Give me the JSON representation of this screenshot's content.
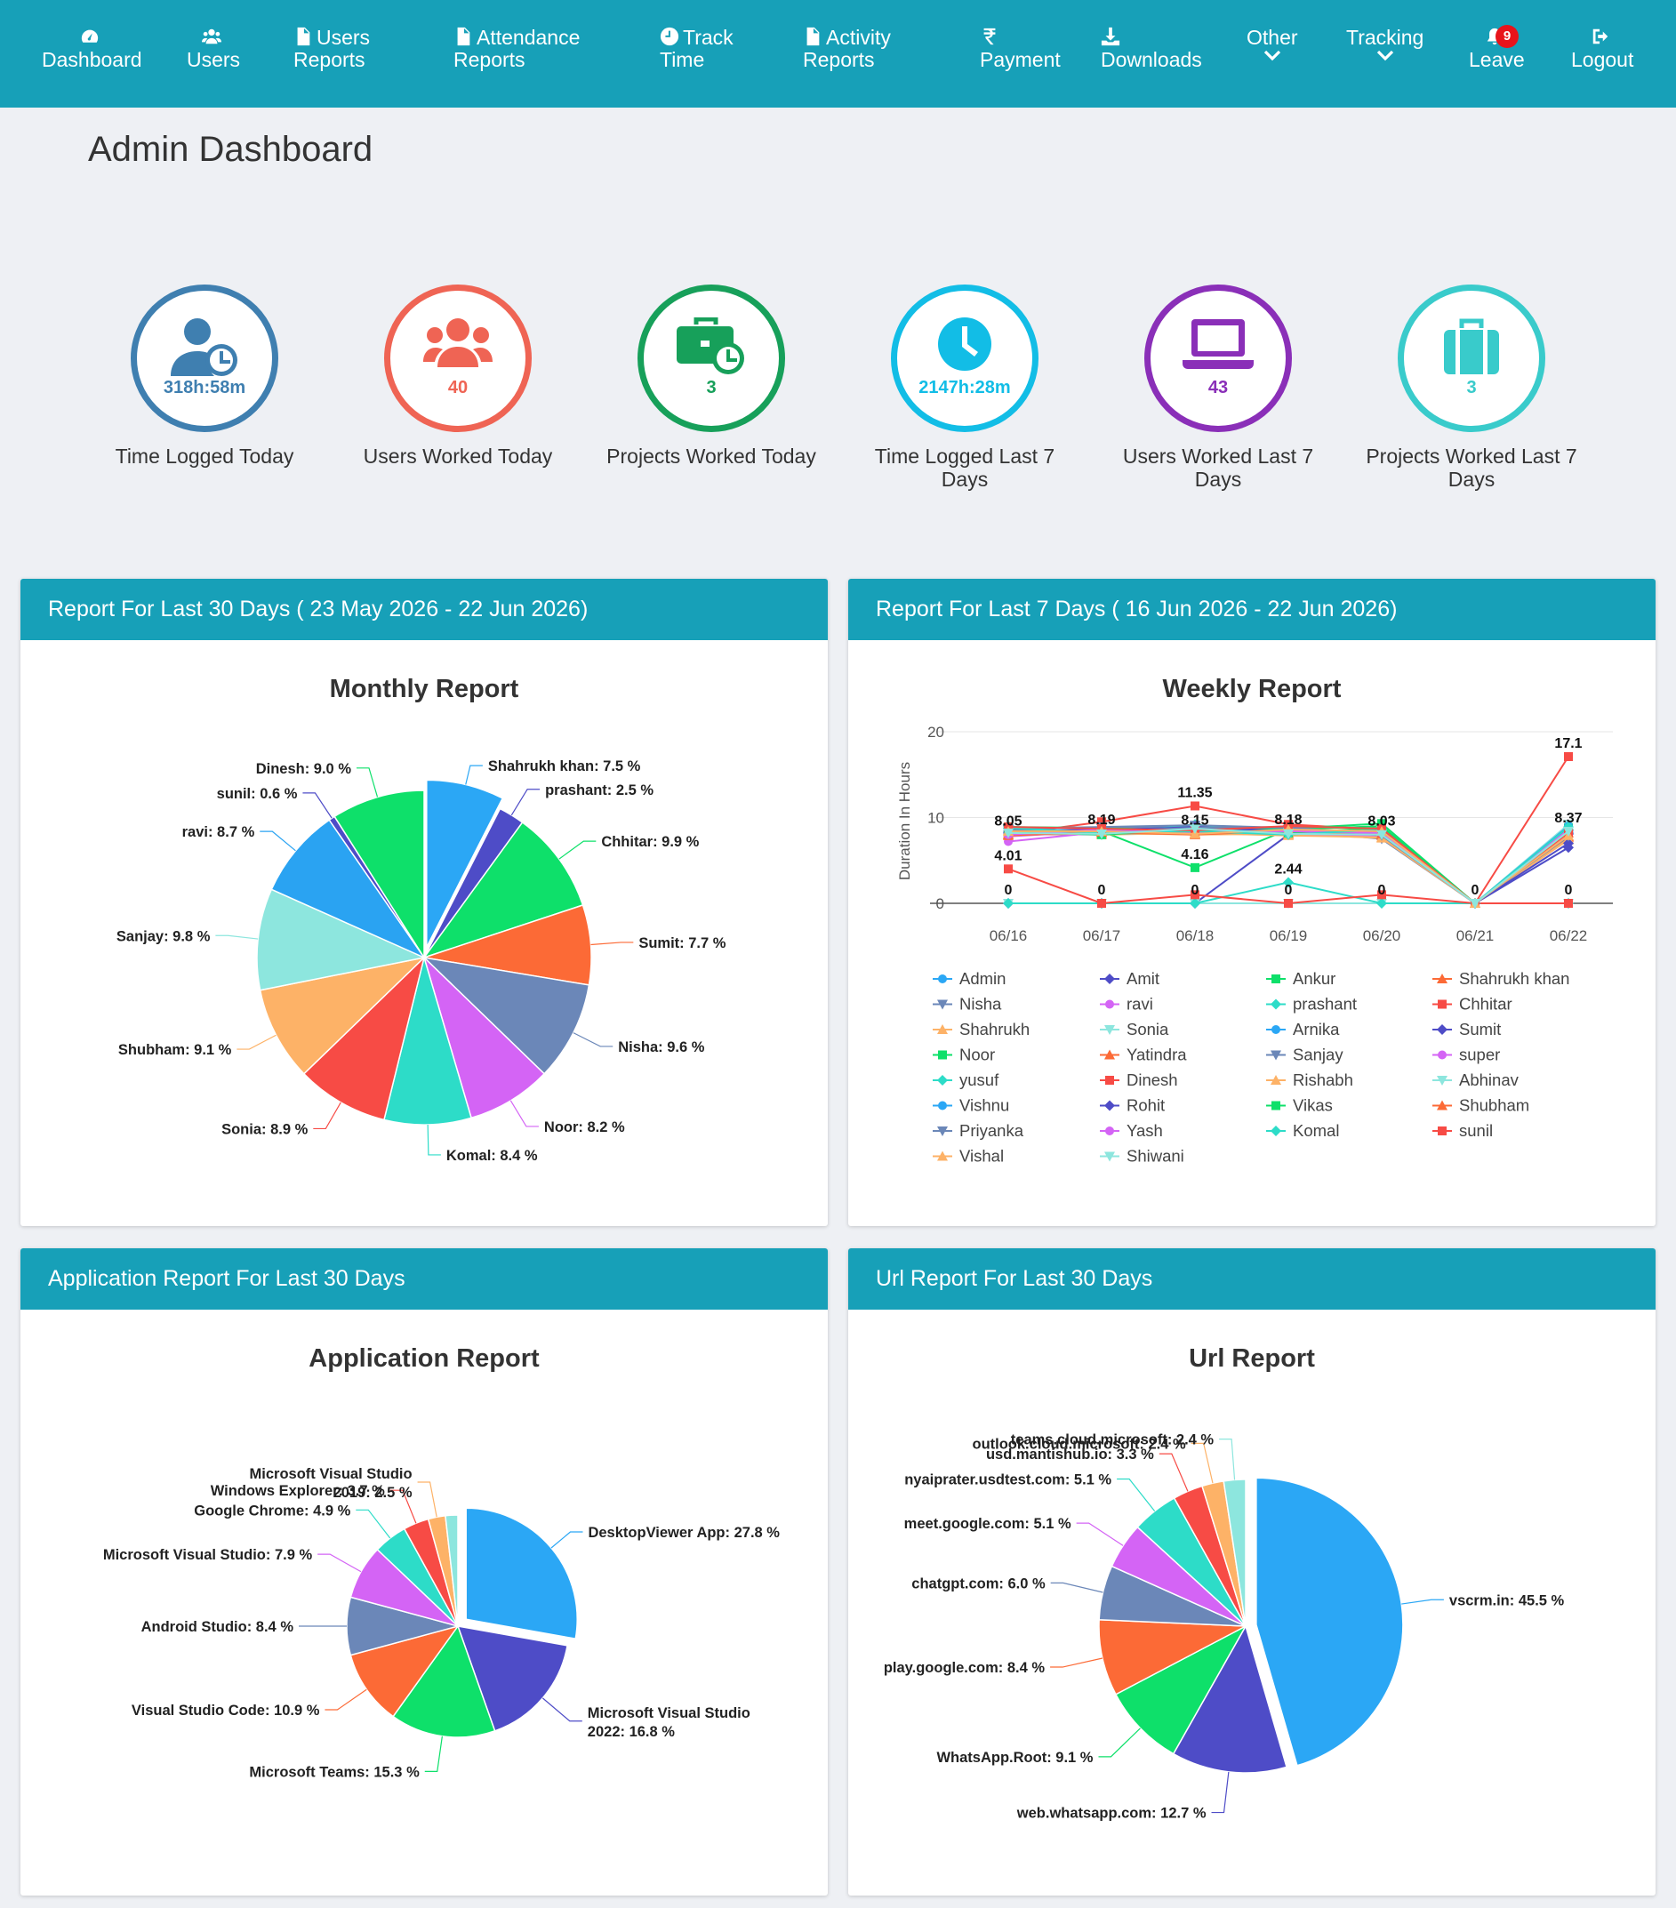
{
  "nav": {
    "items": [
      {
        "l1": "",
        "l2": "Dashboard",
        "icon": "dashboard-icon"
      },
      {
        "l1": "",
        "l2": "Users",
        "icon": "users-icon"
      },
      {
        "l1": "Users",
        "l2": "Reports",
        "icon": "file-icon"
      },
      {
        "l1": "Attendance",
        "l2": "Reports",
        "icon": "file-icon"
      },
      {
        "l1": "Track",
        "l2": "Time",
        "icon": "clock-icon"
      },
      {
        "l1": "Activity",
        "l2": "Reports",
        "icon": "file-icon"
      },
      {
        "l1": "",
        "l2": "Payment",
        "icon": "rupee-icon"
      },
      {
        "l1": "",
        "l2": "Downloads",
        "icon": "download-icon"
      },
      {
        "l1": "Other",
        "icon": "chevron-down-icon"
      },
      {
        "l1": "Tracking",
        "icon": "chevron-down-icon"
      },
      {
        "l1": "",
        "l2": "Leave",
        "icon": "bell-icon",
        "badge": "9"
      },
      {
        "l1": "",
        "l2": "Logout",
        "icon": "logout-icon"
      }
    ]
  },
  "page_title": "Admin Dashboard",
  "stats": [
    {
      "value": "318h:58m",
      "label": "Time Logged Today",
      "color": "#3f7fb0",
      "icon": "user-clock-icon"
    },
    {
      "value": "40",
      "label": "Users Worked Today",
      "color": "#ef6454",
      "icon": "users-icon"
    },
    {
      "value": "3",
      "label": "Projects Worked Today",
      "color": "#17a05a",
      "icon": "briefcase-clock-icon"
    },
    {
      "value": "2147h:28m",
      "label": "Time Logged Last 7 Days",
      "color": "#12bde6",
      "icon": "clock-icon"
    },
    {
      "value": "43",
      "label": "Users Worked Last 7 Days",
      "color": "#8a2fb8",
      "icon": "laptop-icon"
    },
    {
      "value": "3",
      "label": "Projects Worked Last 7 Days",
      "color": "#39cbcb",
      "icon": "luggage-icon"
    }
  ],
  "panels": {
    "monthly_head": "Report For Last 30 Days ( 23 May 2026 - 22 Jun 2026)",
    "weekly_head": "Report For Last 7 Days ( 16 Jun 2026 - 22 Jun 2026)",
    "app_head": "Application Report For Last 30 Days",
    "url_head": "Url Report For Last 30 Days"
  },
  "chart_data": [
    {
      "type": "pie",
      "title": "Monthly Report",
      "slices": [
        {
          "label": "Shahrukh khan: 7.5 %",
          "value": 7.5,
          "color": "#2ba7f5",
          "exploded": true
        },
        {
          "label": "prashant: 2.5 %",
          "value": 2.5,
          "color": "#4e4cc7"
        },
        {
          "label": "Chhitar: 9.9 %",
          "value": 9.9,
          "color": "#0ee06a"
        },
        {
          "label": "Sumit: 7.7 %",
          "value": 7.7,
          "color": "#fc6a36"
        },
        {
          "label": "Nisha: 9.6 %",
          "value": 9.6,
          "color": "#6b87b8"
        },
        {
          "label": "Noor: 8.2 %",
          "value": 8.2,
          "color": "#d464f5"
        },
        {
          "label": "Komal: 8.4 %",
          "value": 8.4,
          "color": "#2ddcc8"
        },
        {
          "label": "Sonia: 8.9 %",
          "value": 8.9,
          "color": "#f74b45"
        },
        {
          "label": "Shubham: 9.1 %",
          "value": 9.1,
          "color": "#fdb267"
        },
        {
          "label": "Sanjay: 9.8 %",
          "value": 9.8,
          "color": "#8de6de"
        },
        {
          "label": "ravi: 8.7 %",
          "value": 8.7,
          "color": "#2aa3f2"
        },
        {
          "label": "sunil: 0.6 %",
          "value": 0.6,
          "color": "#4e4cc7"
        },
        {
          "label": "Dinesh: 9.0 %",
          "value": 9.0,
          "color": "#0ee06a"
        }
      ]
    },
    {
      "type": "line",
      "title": "Weekly Report",
      "ylabel": "Duration In Hours",
      "ylim": [
        0,
        20
      ],
      "yticks": [
        "0",
        "10",
        "20"
      ],
      "categories": [
        "06/16",
        "06/17",
        "06/18",
        "06/19",
        "06/20",
        "06/21",
        "06/22"
      ],
      "value_labels": [
        {
          "x": 0,
          "y": 8.05,
          "t": "8.05"
        },
        {
          "x": 0,
          "y": 4.01,
          "t": "4.01"
        },
        {
          "x": 0,
          "y": 0,
          "t": "0"
        },
        {
          "x": 1,
          "y": 8.19,
          "t": "8.19"
        },
        {
          "x": 1,
          "y": 0,
          "t": "0"
        },
        {
          "x": 2,
          "y": 11.35,
          "t": "11.35"
        },
        {
          "x": 2,
          "y": 8.15,
          "t": "8.15"
        },
        {
          "x": 2,
          "y": 4.16,
          "t": "4.16"
        },
        {
          "x": 2,
          "y": 0,
          "t": "0"
        },
        {
          "x": 3,
          "y": 8.18,
          "t": "8.18"
        },
        {
          "x": 3,
          "y": 2.44,
          "t": "2.44"
        },
        {
          "x": 3,
          "y": 0,
          "t": "0"
        },
        {
          "x": 4,
          "y": 8.03,
          "t": "8.03"
        },
        {
          "x": 4,
          "y": 0,
          "t": "0"
        },
        {
          "x": 5,
          "y": 0,
          "t": "0"
        },
        {
          "x": 6,
          "y": 17.1,
          "t": "17.1"
        },
        {
          "x": 6,
          "y": 8.37,
          "t": "8.37"
        },
        {
          "x": 6,
          "y": 0,
          "t": "0"
        }
      ],
      "series": [
        {
          "name": "Admin",
          "color": "#2ba7f5",
          "marker": "circle",
          "values": [
            8.1,
            8.0,
            8.3,
            8.2,
            8.1,
            0,
            8.5
          ]
        },
        {
          "name": "Amit",
          "color": "#4e4cc7",
          "marker": "diamond",
          "values": [
            0,
            0,
            0,
            8.0,
            8.0,
            0,
            6.5
          ]
        },
        {
          "name": "Ankur",
          "color": "#0ee06a",
          "marker": "square",
          "values": [
            8.2,
            8.4,
            4.16,
            8.6,
            9.0,
            0,
            8.2
          ]
        },
        {
          "name": "Shahrukh khan",
          "color": "#fc6a36",
          "marker": "triangle",
          "values": [
            8.0,
            8.1,
            8.2,
            8.0,
            7.9,
            0,
            7.8
          ]
        },
        {
          "name": "Nisha",
          "color": "#6b87b8",
          "marker": "triangle-down",
          "values": [
            8.3,
            8.7,
            9.0,
            8.6,
            7.5,
            0,
            7.6
          ]
        },
        {
          "name": "ravi",
          "color": "#d464f5",
          "marker": "circle",
          "values": [
            7.2,
            8.3,
            8.5,
            8.3,
            8.0,
            0,
            7.9
          ]
        },
        {
          "name": "prashant",
          "color": "#2ddcc8",
          "marker": "diamond",
          "values": [
            9.0,
            8.0,
            9.2,
            8.1,
            8.2,
            0,
            8.6
          ]
        },
        {
          "name": "Chhitar",
          "color": "#f74b45",
          "marker": "square",
          "values": [
            8.05,
            9.5,
            11.35,
            9.2,
            8.6,
            0,
            17.1
          ]
        },
        {
          "name": "Shahrukh",
          "color": "#fdb267",
          "marker": "triangle",
          "values": [
            8.5,
            8.2,
            8.0,
            8.1,
            7.6,
            0,
            7.4
          ]
        },
        {
          "name": "Sonia",
          "color": "#8de6de",
          "marker": "triangle-down",
          "values": [
            0,
            0,
            0,
            0,
            0,
            0,
            0
          ]
        },
        {
          "name": "Arnika",
          "color": "#2ba7f5",
          "marker": "circle",
          "values": [
            8.6,
            8.5,
            8.7,
            8.4,
            8.3,
            0,
            8.37
          ]
        },
        {
          "name": "Sumit",
          "color": "#4e4cc7",
          "marker": "diamond",
          "values": [
            8.4,
            8.6,
            8.8,
            8.5,
            8.2,
            0,
            8.1
          ]
        },
        {
          "name": "Noor",
          "color": "#0ee06a",
          "marker": "square",
          "values": [
            8.9,
            8.8,
            8.4,
            8.7,
            9.3,
            0,
            8.8
          ]
        },
        {
          "name": "Yatindra",
          "color": "#fc6a36",
          "marker": "triangle",
          "values": [
            8.1,
            8.3,
            8.1,
            8.2,
            8.0,
            0,
            7.7
          ]
        },
        {
          "name": "Sanjay",
          "color": "#6b87b8",
          "marker": "triangle-down",
          "values": [
            8.7,
            8.9,
            9.1,
            8.8,
            8.0,
            0,
            8.0
          ]
        },
        {
          "name": "super",
          "color": "#d464f5",
          "marker": "circle",
          "values": [
            7.8,
            8.4,
            8.4,
            8.0,
            7.8,
            0,
            8.1
          ]
        },
        {
          "name": "yusuf",
          "color": "#2ddcc8",
          "marker": "diamond",
          "values": [
            0,
            0,
            0,
            2.44,
            0,
            0,
            0
          ]
        },
        {
          "name": "Dinesh",
          "color": "#f74b45",
          "marker": "square",
          "values": [
            4.01,
            0,
            1.0,
            0,
            1.0,
            0,
            0
          ]
        },
        {
          "name": "Rishabh",
          "color": "#fdb267",
          "marker": "triangle",
          "values": [
            8.3,
            8.0,
            8.2,
            7.9,
            7.7,
            0,
            7.5
          ]
        },
        {
          "name": "Abhinav",
          "color": "#8de6de",
          "marker": "triangle-down",
          "values": [
            8.0,
            8.2,
            8.6,
            8.3,
            8.5,
            0,
            9.2
          ]
        },
        {
          "name": "Vishnu",
          "color": "#2ba7f5",
          "marker": "circle",
          "values": [
            8.5,
            8.1,
            8.3,
            8.6,
            8.4,
            0,
            9.0
          ]
        },
        {
          "name": "Rohit",
          "color": "#4e4cc7",
          "marker": "diamond",
          "values": [
            8.2,
            8.5,
            8.9,
            8.4,
            8.3,
            0,
            7.0
          ]
        },
        {
          "name": "Vikas",
          "color": "#0ee06a",
          "marker": "square",
          "values": [
            8.4,
            8.0,
            8.6,
            8.2,
            8.8,
            0,
            8.5
          ]
        },
        {
          "name": "Shubham",
          "color": "#fc6a36",
          "marker": "triangle",
          "values": [
            7.9,
            8.3,
            8.0,
            8.5,
            8.1,
            0,
            8.2
          ]
        },
        {
          "name": "Priyanka",
          "color": "#6b87b8",
          "marker": "triangle-down",
          "values": [
            8.6,
            8.4,
            8.8,
            8.9,
            7.9,
            0,
            7.8
          ]
        },
        {
          "name": "Yash",
          "color": "#d464f5",
          "marker": "circle",
          "values": [
            8.0,
            8.6,
            8.3,
            8.4,
            8.2,
            0,
            8.6
          ]
        },
        {
          "name": "Komal",
          "color": "#2ddcc8",
          "marker": "diamond",
          "values": [
            8.8,
            8.2,
            8.4,
            8.0,
            8.6,
            0,
            8.9
          ]
        },
        {
          "name": "sunil",
          "color": "#f74b45",
          "marker": "square",
          "values": [
            8.9,
            8.7,
            8.5,
            9.0,
            8.7,
            0,
            8.3
          ]
        },
        {
          "name": "Vishal",
          "color": "#fdb267",
          "marker": "triangle",
          "values": [
            8.4,
            8.4,
            8.1,
            8.6,
            8.4,
            0,
            7.9
          ]
        },
        {
          "name": "Shiwani",
          "color": "#8de6de",
          "marker": "triangle-down",
          "values": [
            8.2,
            8.1,
            8.7,
            8.1,
            8.0,
            0,
            8.4
          ]
        }
      ]
    },
    {
      "type": "pie",
      "title": "Application Report",
      "slices": [
        {
          "label": "DesktopViewer App: 27.8 %",
          "value": 27.8,
          "color": "#2ba7f5",
          "exploded": true
        },
        {
          "label": "Microsoft Visual Studio 2022: 16.8 %",
          "value": 16.8,
          "color": "#4e4cc7"
        },
        {
          "label": "Microsoft Teams: 15.3 %",
          "value": 15.3,
          "color": "#0ee06a"
        },
        {
          "label": "Visual Studio Code: 10.9 %",
          "value": 10.9,
          "color": "#fc6a36"
        },
        {
          "label": "Android Studio: 8.4 %",
          "value": 8.4,
          "color": "#6b87b8"
        },
        {
          "label": "Microsoft Visual Studio: 7.9 %",
          "value": 7.9,
          "color": "#d464f5"
        },
        {
          "label": "Google Chrome: 4.9 %",
          "value": 4.9,
          "color": "#2ddcc8"
        },
        {
          "label": "Windows Explorer: 3.7 %",
          "value": 3.7,
          "color": "#f74b45"
        },
        {
          "label": "Microsoft Visual Studio 2019: 2.5 %",
          "value": 2.5,
          "color": "#fdb267"
        },
        {
          "label": "",
          "value": 1.8,
          "color": "#8de6de"
        }
      ]
    },
    {
      "type": "pie",
      "title": "Url Report",
      "slices": [
        {
          "label": "vscrm.in: 45.5 %",
          "value": 45.5,
          "color": "#2ba7f5",
          "exploded": true
        },
        {
          "label": "web.whatsapp.com: 12.7 %",
          "value": 12.7,
          "color": "#4e4cc7"
        },
        {
          "label": "WhatsApp.Root: 9.1 %",
          "value": 9.1,
          "color": "#0ee06a"
        },
        {
          "label": "play.google.com: 8.4 %",
          "value": 8.4,
          "color": "#fc6a36"
        },
        {
          "label": "chatgpt.com: 6.0 %",
          "value": 6.0,
          "color": "#6b87b8"
        },
        {
          "label": "meet.google.com: 5.1 %",
          "value": 5.1,
          "color": "#d464f5"
        },
        {
          "label": "nyaiprater.usdtest.com: 5.1 %",
          "value": 5.1,
          "color": "#2ddcc8"
        },
        {
          "label": "usd.mantishub.io: 3.3 %",
          "value": 3.3,
          "color": "#f74b45"
        },
        {
          "label": "outlook.cloud.microsoft: 2.4 %",
          "value": 2.4,
          "color": "#fdb267"
        },
        {
          "label": "teams.cloud.microsoft: 2.4 %",
          "value": 2.4,
          "color": "#8de6de"
        }
      ]
    }
  ]
}
